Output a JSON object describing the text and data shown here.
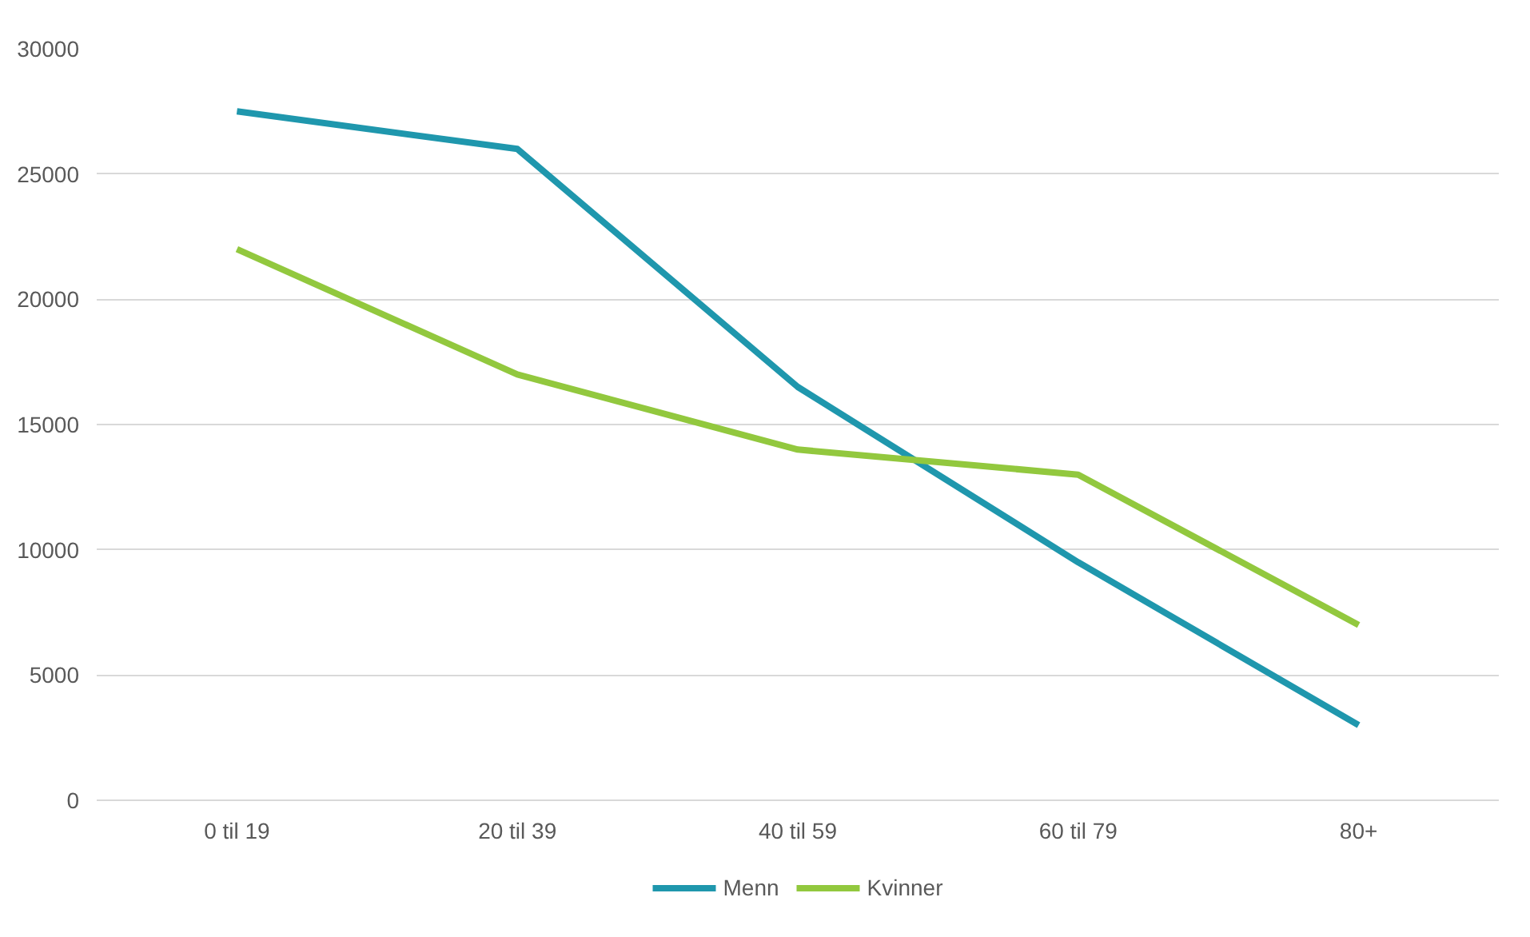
{
  "chart_data": {
    "type": "line",
    "categories": [
      "0 til 19",
      "20 til 39",
      "40 til 59",
      "60 til 79",
      "80+"
    ],
    "series": [
      {
        "name": "Menn",
        "color": "#1f97ad",
        "values": [
          27500,
          26000,
          16500,
          9500,
          3000
        ]
      },
      {
        "name": "Kvinner",
        "color": "#92c83e",
        "values": [
          22000,
          17000,
          14000,
          13000,
          7000
        ]
      }
    ],
    "ylim": [
      0,
      30000
    ],
    "yticks": [
      0,
      5000,
      10000,
      15000,
      20000,
      25000,
      30000
    ],
    "grid": "y",
    "legend": "bottom",
    "marker": "none",
    "line_style": "solid"
  }
}
